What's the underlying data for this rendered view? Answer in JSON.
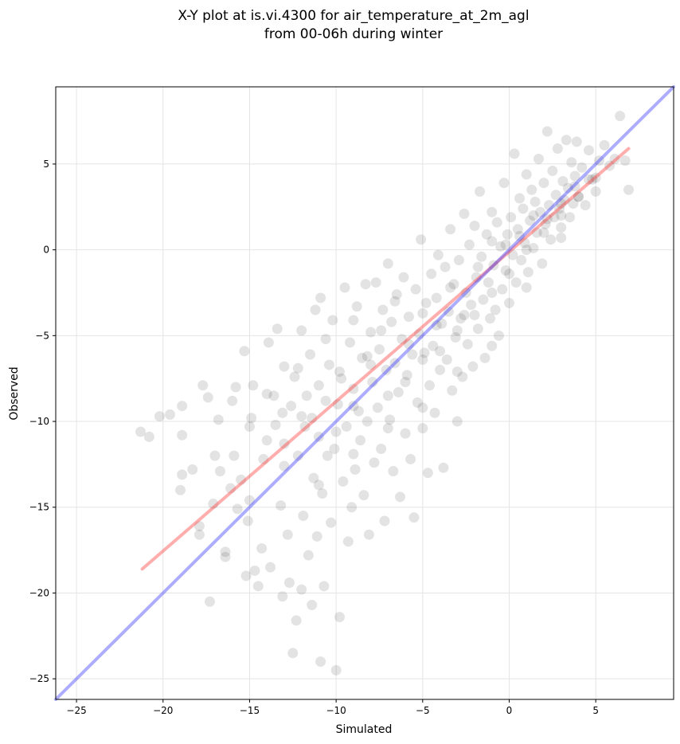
{
  "chart_data": {
    "type": "scatter",
    "title": "X-Y plot at is.vi.4300 for air_temperature_at_2m_agl\nfrom 00-06h during winter",
    "xlabel": "Simulated",
    "ylabel": "Observed",
    "xlim": [
      -26.2,
      9.5
    ],
    "ylim": [
      -26.2,
      9.5
    ],
    "xticks": [
      -25,
      -20,
      -15,
      -10,
      -5,
      0,
      5
    ],
    "yticks": [
      -25,
      -20,
      -15,
      -10,
      -5,
      0,
      5
    ],
    "xtick_labels": [
      "−25",
      "−20",
      "−15",
      "−10",
      "−5",
      "0",
      "5"
    ],
    "ytick_labels": [
      "−25",
      "−20",
      "−15",
      "−10",
      "−5",
      "0",
      "5"
    ],
    "grid": true,
    "point_color": "#000000",
    "point_opacity": 0.08,
    "series": [
      {
        "type": "scatter",
        "points": [
          [
            -21.3,
            -10.6
          ],
          [
            -20.8,
            -10.9
          ],
          [
            -20.2,
            -9.7
          ],
          [
            -19.6,
            -9.6
          ],
          [
            -18.9,
            -9.1
          ],
          [
            -18.9,
            -13.1
          ],
          [
            -18.9,
            -10.8
          ],
          [
            -18.3,
            -12.8
          ],
          [
            -17.9,
            -16.1
          ],
          [
            -17.9,
            -16.6
          ],
          [
            -17.7,
            -7.9
          ],
          [
            -17.4,
            -8.6
          ],
          [
            -17.3,
            -20.5
          ],
          [
            -17.1,
            -14.8
          ],
          [
            -16.8,
            -9.9
          ],
          [
            -16.7,
            -12.9
          ],
          [
            -16.4,
            -17.6
          ],
          [
            -16.4,
            -17.9
          ],
          [
            -16.1,
            -13.9
          ],
          [
            -15.9,
            -12.0
          ],
          [
            -15.8,
            -8.0
          ],
          [
            -15.7,
            -15.1
          ],
          [
            -15.5,
            -13.4
          ],
          [
            -15.3,
            -5.9
          ],
          [
            -15.2,
            -19.0
          ],
          [
            -15.1,
            -15.8
          ],
          [
            -14.9,
            -9.8
          ],
          [
            -14.8,
            -7.9
          ],
          [
            -14.7,
            -18.7
          ],
          [
            -14.5,
            -19.6
          ],
          [
            -14.3,
            -17.4
          ],
          [
            -14.2,
            -12.2
          ],
          [
            -14.0,
            -11.1
          ],
          [
            -13.8,
            -18.5
          ],
          [
            -13.6,
            -8.5
          ],
          [
            -13.5,
            -10.2
          ],
          [
            -13.4,
            -4.6
          ],
          [
            -13.2,
            -14.9
          ],
          [
            -13.1,
            -20.2
          ],
          [
            -13.0,
            -6.8
          ],
          [
            -12.8,
            -16.6
          ],
          [
            -12.7,
            -19.4
          ],
          [
            -12.6,
            -9.1
          ],
          [
            -12.5,
            -23.5
          ],
          [
            -12.4,
            -7.4
          ],
          [
            -12.3,
            -21.6
          ],
          [
            -12.2,
            -12.0
          ],
          [
            -12.0,
            -19.8
          ],
          [
            -12.0,
            -4.7
          ],
          [
            -11.9,
            -15.5
          ],
          [
            -11.8,
            -10.3
          ],
          [
            -11.7,
            -8.5
          ],
          [
            -11.6,
            -17.8
          ],
          [
            -11.5,
            -6.1
          ],
          [
            -11.4,
            -20.7
          ],
          [
            -11.3,
            -13.3
          ],
          [
            -11.2,
            -3.5
          ],
          [
            -11.1,
            -16.7
          ],
          [
            -11.0,
            -10.9
          ],
          [
            -10.9,
            -2.8
          ],
          [
            -10.9,
            -24.0
          ],
          [
            -10.8,
            -14.2
          ],
          [
            -10.7,
            -19.6
          ],
          [
            -10.6,
            -8.8
          ],
          [
            -10.5,
            -12.0
          ],
          [
            -10.4,
            -6.7
          ],
          [
            -10.3,
            -15.9
          ],
          [
            -10.2,
            -4.1
          ],
          [
            -10.1,
            -11.6
          ],
          [
            -10.0,
            -24.5
          ],
          [
            -9.9,
            -9.0
          ],
          [
            -9.8,
            -21.4
          ],
          [
            -9.7,
            -7.5
          ],
          [
            -9.6,
            -13.5
          ],
          [
            -9.5,
            -2.2
          ],
          [
            -9.4,
            -10.3
          ],
          [
            -9.3,
            -17.0
          ],
          [
            -9.2,
            -5.4
          ],
          [
            -9.1,
            -15.0
          ],
          [
            -9.0,
            -8.1
          ],
          [
            -8.9,
            -12.8
          ],
          [
            -8.8,
            -3.3
          ],
          [
            -8.7,
            -9.4
          ],
          [
            -8.6,
            -11.1
          ],
          [
            -8.5,
            -6.3
          ],
          [
            -8.4,
            -14.3
          ],
          [
            -8.3,
            -2.0
          ],
          [
            -8.2,
            -10.0
          ],
          [
            -8.1,
            -16.6
          ],
          [
            -8.0,
            -4.8
          ],
          [
            -7.9,
            -7.7
          ],
          [
            -7.8,
            -12.4
          ],
          [
            -7.7,
            -1.9
          ],
          [
            -7.6,
            -9.2
          ],
          [
            -7.5,
            -5.8
          ],
          [
            -7.4,
            -11.6
          ],
          [
            -7.3,
            -3.5
          ],
          [
            -7.2,
            -15.8
          ],
          [
            -7.1,
            -7.0
          ],
          [
            -7.0,
            -0.8
          ],
          [
            -6.9,
            -9.9
          ],
          [
            -6.8,
            -4.2
          ],
          [
            -6.7,
            -12.9
          ],
          [
            -6.6,
            -6.6
          ],
          [
            -6.5,
            -2.6
          ],
          [
            -6.4,
            -8.3
          ],
          [
            -6.3,
            -14.4
          ],
          [
            -6.2,
            -5.2
          ],
          [
            -6.1,
            -1.6
          ],
          [
            -6.0,
            -10.7
          ],
          [
            -5.9,
            -7.3
          ],
          [
            -5.8,
            -3.9
          ],
          [
            -5.7,
            -12.2
          ],
          [
            -5.6,
            -6.1
          ],
          [
            -5.5,
            -15.6
          ],
          [
            -5.4,
            -2.3
          ],
          [
            -5.3,
            -8.9
          ],
          [
            -5.2,
            -4.9
          ],
          [
            -5.1,
            0.6
          ],
          [
            -5.0,
            -10.4
          ],
          [
            -4.9,
            -6.0
          ],
          [
            -4.8,
            -3.1
          ],
          [
            -4.7,
            -13.0
          ],
          [
            -4.6,
            -7.9
          ],
          [
            -4.5,
            -1.4
          ],
          [
            -4.4,
            -5.6
          ],
          [
            -4.3,
            -9.5
          ],
          [
            -4.2,
            -2.8
          ],
          [
            -4.1,
            -0.3
          ],
          [
            -4.0,
            -7.0
          ],
          [
            -3.9,
            -4.3
          ],
          [
            -3.8,
            -12.7
          ],
          [
            -3.7,
            -1.0
          ],
          [
            -3.6,
            -6.4
          ],
          [
            -3.5,
            -3.6
          ],
          [
            -3.4,
            1.2
          ],
          [
            -3.3,
            -8.2
          ],
          [
            -3.2,
            -2.0
          ],
          [
            -3.1,
            -5.1
          ],
          [
            -3.0,
            -10.0
          ],
          [
            -2.9,
            -0.6
          ],
          [
            -2.8,
            -4.0
          ],
          [
            -2.7,
            -7.4
          ],
          [
            -2.6,
            2.1
          ],
          [
            -2.5,
            -2.5
          ],
          [
            -2.4,
            -5.5
          ],
          [
            -2.3,
            0.3
          ],
          [
            -2.2,
            -3.2
          ],
          [
            -2.1,
            -6.8
          ],
          [
            -2.0,
            1.4
          ],
          [
            -1.9,
            -1.6
          ],
          [
            -1.8,
            -4.6
          ],
          [
            -1.7,
            3.4
          ],
          [
            -1.6,
            -0.4
          ],
          [
            -1.5,
            -2.9
          ],
          [
            -1.4,
            -6.3
          ],
          [
            -1.3,
            0.9
          ],
          [
            -1.2,
            -1.9
          ],
          [
            -1.1,
            -4.0
          ],
          [
            -1.0,
            2.2
          ],
          [
            -0.9,
            -0.9
          ],
          [
            -0.8,
            -3.5
          ],
          [
            -0.7,
            1.6
          ],
          [
            -0.6,
            -5.0
          ],
          [
            -0.5,
            0.2
          ],
          [
            -0.4,
            -2.3
          ],
          [
            -0.3,
            3.9
          ],
          [
            -0.2,
            -1.2
          ],
          [
            -0.1,
            0.9
          ],
          [
            0.0,
            -3.1
          ],
          [
            0.1,
            1.9
          ],
          [
            0.2,
            -0.3
          ],
          [
            0.3,
            5.6
          ],
          [
            0.4,
            -1.9
          ],
          [
            0.5,
            1.2
          ],
          [
            0.6,
            3.0
          ],
          [
            0.7,
            -0.6
          ],
          [
            0.8,
            2.4
          ],
          [
            0.9,
            0.4
          ],
          [
            1.0,
            4.4
          ],
          [
            1.1,
            -1.3
          ],
          [
            1.2,
            1.7
          ],
          [
            1.3,
            3.5
          ],
          [
            1.4,
            0.1
          ],
          [
            1.5,
            2.8
          ],
          [
            1.6,
            1.0
          ],
          [
            1.7,
            5.3
          ],
          [
            1.8,
            2.2
          ],
          [
            1.9,
            -0.8
          ],
          [
            2.0,
            3.9
          ],
          [
            2.1,
            1.5
          ],
          [
            2.2,
            6.9
          ],
          [
            2.3,
            2.6
          ],
          [
            2.4,
            0.6
          ],
          [
            2.5,
            4.6
          ],
          [
            2.6,
            1.9
          ],
          [
            2.7,
            3.2
          ],
          [
            2.8,
            5.9
          ],
          [
            2.9,
            2.4
          ],
          [
            3.0,
            1.3
          ],
          [
            3.1,
            4.0
          ],
          [
            3.2,
            2.9
          ],
          [
            3.3,
            6.4
          ],
          [
            3.4,
            3.6
          ],
          [
            3.5,
            1.9
          ],
          [
            3.6,
            5.1
          ],
          [
            3.7,
            2.7
          ],
          [
            3.8,
            4.3
          ],
          [
            3.9,
            6.3
          ],
          [
            4.0,
            3.1
          ],
          [
            4.2,
            4.8
          ],
          [
            4.4,
            2.6
          ],
          [
            4.6,
            5.8
          ],
          [
            4.8,
            4.1
          ],
          [
            5.0,
            3.4
          ],
          [
            5.2,
            5.2
          ],
          [
            5.5,
            6.1
          ],
          [
            5.8,
            4.9
          ],
          [
            6.1,
            5.3
          ],
          [
            6.4,
            7.8
          ],
          [
            6.7,
            5.2
          ],
          [
            6.9,
            3.5
          ],
          [
            -13.9,
            -5.4
          ],
          [
            -13.1,
            -9.5
          ],
          [
            -12.2,
            -6.9
          ],
          [
            -11.4,
            -9.8
          ],
          [
            -10.6,
            -5.2
          ],
          [
            -9.8,
            -7.1
          ],
          [
            -9.0,
            -4.1
          ],
          [
            -8.2,
            -6.2
          ],
          [
            -7.4,
            -4.7
          ],
          [
            -6.6,
            -3.0
          ],
          [
            -5.8,
            -5.5
          ],
          [
            -5.0,
            -3.7
          ],
          [
            -4.2,
            -4.4
          ],
          [
            -3.4,
            -2.2
          ],
          [
            -2.6,
            -3.8
          ],
          [
            -1.8,
            -1.0
          ],
          [
            -1.0,
            0.5
          ],
          [
            -0.2,
            0.3
          ],
          [
            0.6,
            0.8
          ],
          [
            1.4,
            2.0
          ],
          [
            2.2,
            1.8
          ],
          [
            3.0,
            2.7
          ],
          [
            3.8,
            3.7
          ],
          [
            4.6,
            4.1
          ],
          [
            -16.0,
            -8.8
          ],
          [
            -15.0,
            -10.3
          ],
          [
            -14.0,
            -8.4
          ],
          [
            -13.0,
            -11.3
          ],
          [
            -12.0,
            -9.7
          ],
          [
            -11.0,
            -7.9
          ],
          [
            -10.0,
            -10.6
          ],
          [
            -9.0,
            -9.1
          ],
          [
            -8.0,
            -6.7
          ],
          [
            -7.0,
            -8.5
          ],
          [
            -6.0,
            -7.7
          ],
          [
            -5.0,
            -6.4
          ],
          [
            -4.0,
            -5.9
          ],
          [
            -3.0,
            -4.7
          ],
          [
            -2.0,
            -3.8
          ],
          [
            -1.0,
            -2.5
          ],
          [
            0.0,
            -1.4
          ],
          [
            1.0,
            0.0
          ],
          [
            2.0,
            1.0
          ],
          [
            3.0,
            2.0
          ],
          [
            4.0,
            3.1
          ],
          [
            5.0,
            4.2
          ],
          [
            -19.0,
            -14.0
          ],
          [
            -17.0,
            -12.0
          ],
          [
            -15.0,
            -14.6
          ],
          [
            -13.0,
            -12.6
          ],
          [
            -11.0,
            -13.7
          ],
          [
            -9.0,
            -11.9
          ],
          [
            -7.0,
            -10.4
          ],
          [
            -5.0,
            -9.2
          ],
          [
            -3.0,
            -7.1
          ],
          [
            -1.0,
            -5.6
          ],
          [
            1.0,
            -2.2
          ],
          [
            3.0,
            0.7
          ]
        ]
      },
      {
        "type": "line",
        "color": "#ff3333",
        "points": [
          [
            -21.2,
            -18.6
          ],
          [
            6.9,
            5.9
          ]
        ]
      },
      {
        "type": "line",
        "color": "#3333ff",
        "points": [
          [
            -26.2,
            -26.2
          ],
          [
            9.5,
            9.5
          ]
        ]
      }
    ]
  }
}
